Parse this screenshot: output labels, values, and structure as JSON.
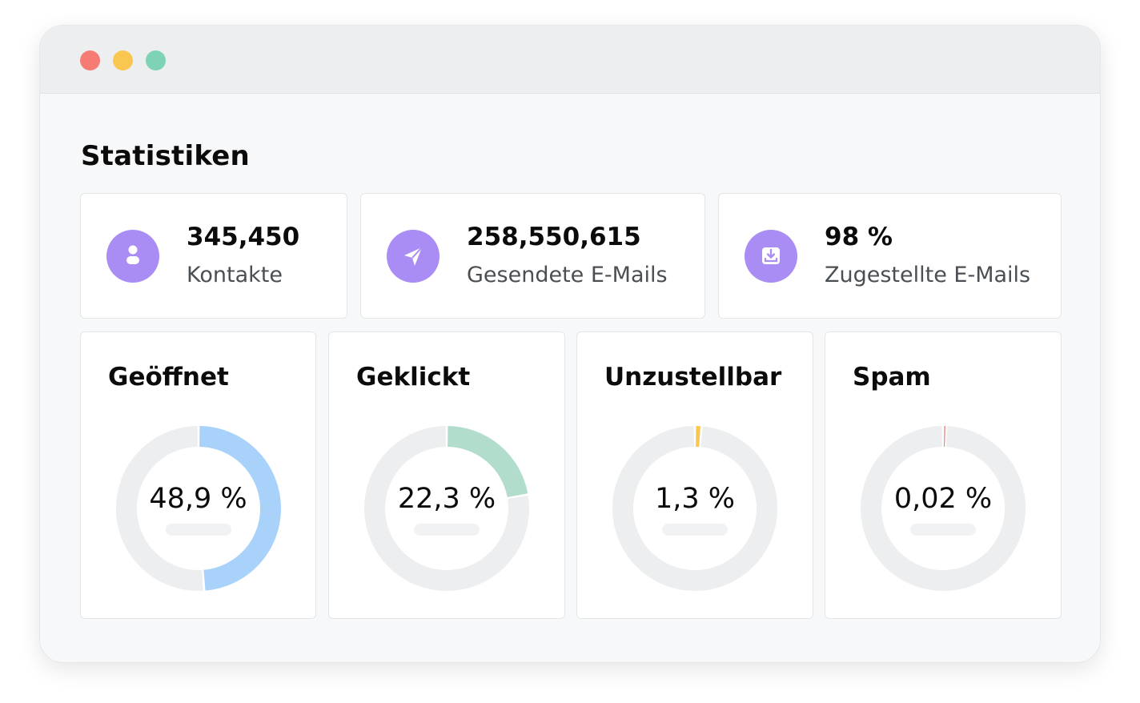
{
  "window": {
    "dots": [
      {
        "name": "close",
        "color": "#f77b75"
      },
      {
        "name": "minimize",
        "color": "#f9c74f"
      },
      {
        "name": "zoom",
        "color": "#7ed3b6"
      }
    ]
  },
  "section_title": "Statistiken",
  "stats": [
    {
      "value": "345,450",
      "label": "Kontakte",
      "icon": "user-icon"
    },
    {
      "value": "258,550,615",
      "label": "Gesendete E-Mails",
      "icon": "send-icon"
    },
    {
      "value": "98 %",
      "label": "Zugestellte E-Mails",
      "icon": "inbox-download-icon"
    }
  ],
  "donuts": [
    {
      "title": "Geöffnet",
      "value_text": "48,9 %",
      "percent": 48.9,
      "color": "#a9d2fb"
    },
    {
      "title": "Geklickt",
      "value_text": "22,3 %",
      "percent": 22.3,
      "color": "#b2ddcc"
    },
    {
      "title": "Unzustellbar",
      "value_text": "1,3 %",
      "percent": 1.3,
      "color": "#f9c74f"
    },
    {
      "title": "Spam",
      "value_text": "0,02 %",
      "percent": 0.02,
      "color": "#f07c7c"
    }
  ],
  "colors": {
    "track": "#eceeef",
    "icon_bg": "#a98df5"
  }
}
